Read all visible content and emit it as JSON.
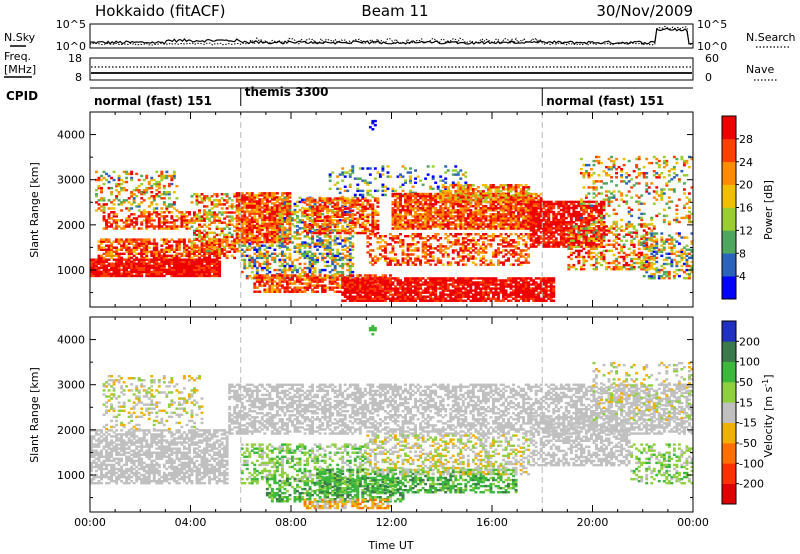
{
  "header": {
    "radar": "Hokkaido (fitACF)",
    "beam": "Beam 11",
    "date": "30/Nov/2009"
  },
  "summary_panel": {
    "left_label": "N.Sky",
    "right_label": "N.Search",
    "left_ticks": [
      "10^5",
      "10^0"
    ],
    "right_ticks": [
      "10^5",
      "10^0"
    ]
  },
  "freq_panel": {
    "left_label_line1": "Freq.",
    "left_label_line2": "[MHz]",
    "left_ticks": [
      "18",
      "8"
    ],
    "right_label": "Nave",
    "right_ticks": [
      "60",
      "0"
    ]
  },
  "cpid_panel": {
    "label": "CPID",
    "segments": [
      {
        "label": "normal (fast) 151",
        "start_h": 0,
        "end_h": 6
      },
      {
        "label": "themis 3300",
        "start_h": 6,
        "end_h": 18
      },
      {
        "label": "normal (fast) 151",
        "start_h": 18,
        "end_h": 24
      }
    ]
  },
  "chart_data": [
    {
      "type": "heatmap",
      "quantity": "Power",
      "xlabel": "",
      "ylabel": "Slant Range [km]",
      "x_range_hours": [
        0,
        24
      ],
      "ylim": [
        180,
        4500
      ],
      "y_ticks": [
        1000,
        2000,
        3000,
        4000
      ],
      "x_ticks": [
        0,
        4,
        8,
        12,
        16,
        20,
        24
      ],
      "colorbar_label": "Power [dB]",
      "colorbar_ticks": [
        "4",
        "8",
        "12",
        "16",
        "20",
        "24",
        "28"
      ],
      "colorbar_colors": [
        "#0000ff",
        "#2b62bb",
        "#4fa65f",
        "#9acd32",
        "#f0c000",
        "#ff8c00",
        "#ff4000",
        "#ee0000"
      ],
      "scatter_bands": [
        {
          "t0": 0.0,
          "t1": 5.2,
          "r0": 850,
          "r1": 1250,
          "dens": 0.92,
          "level": 7,
          "spread": 1
        },
        {
          "t0": 0.3,
          "t1": 5.8,
          "r0": 1250,
          "r1": 1700,
          "dens": 0.7,
          "level": 6,
          "spread": 2
        },
        {
          "t0": 0.5,
          "t1": 4.0,
          "r0": 1900,
          "r1": 2300,
          "dens": 0.55,
          "level": 6,
          "spread": 2
        },
        {
          "t0": 0.2,
          "t1": 3.5,
          "r0": 2300,
          "r1": 3200,
          "dens": 0.3,
          "level": 4,
          "spread": 3
        },
        {
          "t0": 4.0,
          "t1": 6.0,
          "r0": 1400,
          "r1": 2700,
          "dens": 0.45,
          "level": 5,
          "spread": 3
        },
        {
          "t0": 5.8,
          "t1": 8.0,
          "r0": 1600,
          "r1": 2700,
          "dens": 0.85,
          "level": 6,
          "spread": 2
        },
        {
          "t0": 6.0,
          "t1": 10.5,
          "r0": 800,
          "r1": 1600,
          "dens": 0.45,
          "level": 3,
          "spread": 3
        },
        {
          "t0": 6.5,
          "t1": 12.0,
          "r0": 500,
          "r1": 900,
          "dens": 0.7,
          "level": 6,
          "spread": 2
        },
        {
          "t0": 7.5,
          "t1": 10.5,
          "r0": 1500,
          "r1": 2600,
          "dens": 0.4,
          "level": 3,
          "spread": 3
        },
        {
          "t0": 8.5,
          "t1": 11.5,
          "r0": 1800,
          "r1": 2600,
          "dens": 0.6,
          "level": 6,
          "spread": 2
        },
        {
          "t0": 9.5,
          "t1": 15.0,
          "r0": 2600,
          "r1": 3300,
          "dens": 0.2,
          "level": 2,
          "spread": 3
        },
        {
          "t0": 10.0,
          "t1": 18.5,
          "r0": 300,
          "r1": 800,
          "dens": 0.85,
          "level": 7,
          "spread": 1
        },
        {
          "t0": 11.0,
          "t1": 17.5,
          "r0": 1100,
          "r1": 1800,
          "dens": 0.45,
          "level": 6,
          "spread": 2
        },
        {
          "t0": 12.0,
          "t1": 18.0,
          "r0": 1900,
          "r1": 2700,
          "dens": 0.8,
          "level": 6,
          "spread": 2
        },
        {
          "t0": 14.0,
          "t1": 17.5,
          "r0": 2500,
          "r1": 2900,
          "dens": 0.7,
          "level": 5,
          "spread": 2
        },
        {
          "t0": 17.5,
          "t1": 20.5,
          "r0": 1500,
          "r1": 2500,
          "dens": 0.75,
          "level": 7,
          "spread": 1
        },
        {
          "t0": 19.0,
          "t1": 22.5,
          "r0": 1000,
          "r1": 2000,
          "dens": 0.45,
          "level": 5,
          "spread": 3
        },
        {
          "t0": 19.5,
          "t1": 24.0,
          "r0": 2000,
          "r1": 3500,
          "dens": 0.2,
          "level": 4,
          "spread": 3
        },
        {
          "t0": 22.0,
          "t1": 24.0,
          "r0": 800,
          "r1": 1800,
          "dens": 0.4,
          "level": 3,
          "spread": 3
        },
        {
          "t0": 11.1,
          "t1": 11.35,
          "r0": 4100,
          "r1": 4300,
          "dens": 0.6,
          "level": 0,
          "spread": 0
        }
      ]
    },
    {
      "type": "heatmap",
      "quantity": "Velocity",
      "xlabel": "Time UT",
      "ylabel": "Slant Range [km]",
      "x_range_hours": [
        0,
        24
      ],
      "ylim": [
        180,
        4500
      ],
      "y_ticks": [
        1000,
        2000,
        3000,
        4000
      ],
      "x_ticks": [
        0,
        4,
        8,
        12,
        16,
        20,
        24
      ],
      "x_tick_labels": [
        "00:00",
        "04:00",
        "08:00",
        "12:00",
        "16:00",
        "20:00",
        "00:00"
      ],
      "colorbar_label": "Velocity [m s^-1]",
      "colorbar_ticks": [
        "200",
        "100",
        "50",
        "15",
        "-15",
        "-50",
        "-100",
        "-200"
      ],
      "colorbar_colors": [
        "#2030c0",
        "#3a7a4a",
        "#3cb83c",
        "#90d040",
        "#c0c0c0",
        "#f0b000",
        "#ff7000",
        "#ff3000",
        "#e00000"
      ],
      "scatter_bands": [
        {
          "t0": 0.0,
          "t1": 5.5,
          "r0": 800,
          "r1": 2000,
          "dens": 0.65,
          "level": 4,
          "spread": 0
        },
        {
          "t0": 0.5,
          "t1": 4.5,
          "r0": 2000,
          "r1": 3200,
          "dens": 0.25,
          "level": 4,
          "spread": 1
        },
        {
          "t0": 5.5,
          "t1": 24.0,
          "r0": 1900,
          "r1": 3000,
          "dens": 0.55,
          "level": 4,
          "spread": 0
        },
        {
          "t0": 6.0,
          "t1": 11.0,
          "r0": 800,
          "r1": 1700,
          "dens": 0.45,
          "level": 3,
          "spread": 1
        },
        {
          "t0": 7.0,
          "t1": 12.5,
          "r0": 400,
          "r1": 900,
          "dens": 0.5,
          "level": 2,
          "spread": 1
        },
        {
          "t0": 9.0,
          "t1": 17.0,
          "r0": 600,
          "r1": 1100,
          "dens": 0.55,
          "level": 2,
          "spread": 1
        },
        {
          "t0": 11.0,
          "t1": 17.5,
          "r0": 1000,
          "r1": 1900,
          "dens": 0.4,
          "level": 4,
          "spread": 1
        },
        {
          "t0": 8.5,
          "t1": 12.0,
          "r0": 250,
          "r1": 450,
          "dens": 0.55,
          "level": 5,
          "spread": 1
        },
        {
          "t0": 17.5,
          "t1": 21.5,
          "r0": 1200,
          "r1": 2300,
          "dens": 0.5,
          "level": 4,
          "spread": 0
        },
        {
          "t0": 20.0,
          "t1": 24.0,
          "r0": 2200,
          "r1": 3500,
          "dens": 0.2,
          "level": 4,
          "spread": 1
        },
        {
          "t0": 21.5,
          "t1": 24.0,
          "r0": 800,
          "r1": 1700,
          "dens": 0.35,
          "level": 3,
          "spread": 1
        },
        {
          "t0": 11.1,
          "t1": 11.35,
          "r0": 4100,
          "r1": 4300,
          "dens": 0.6,
          "level": 2,
          "spread": 0
        }
      ]
    }
  ]
}
